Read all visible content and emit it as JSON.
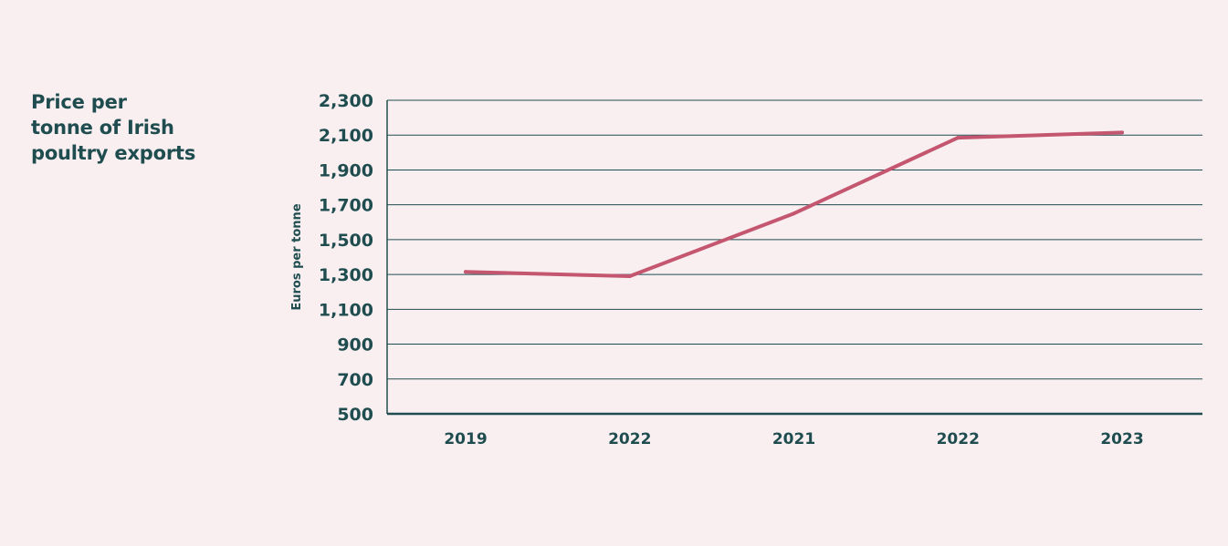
{
  "chart_data": {
    "type": "line",
    "title": "Price per\ntonne of Irish\npoultry exports",
    "xlabel": "",
    "ylabel": "Euros per tonne",
    "categories": [
      "2019",
      "2022",
      "2021",
      "2022",
      "2023"
    ],
    "series": [
      {
        "values": [
          1315,
          1290,
          1650,
          2085,
          2115
        ]
      }
    ],
    "yticks": [
      500,
      700,
      900,
      1100,
      1300,
      1500,
      1700,
      1900,
      2100,
      2300
    ],
    "ytick_labels": [
      "500",
      "700",
      "900",
      "1,100",
      "1,300",
      "1,500",
      "1,700",
      "1,900",
      "2,100",
      "2,300"
    ],
    "ylim": [
      500,
      2300
    ],
    "grid": true,
    "legend": "none",
    "colors": {
      "line": "#c4566f",
      "axis": "#1f4d4f",
      "text": "#1f4d4f",
      "background": "#f9eff1"
    }
  }
}
